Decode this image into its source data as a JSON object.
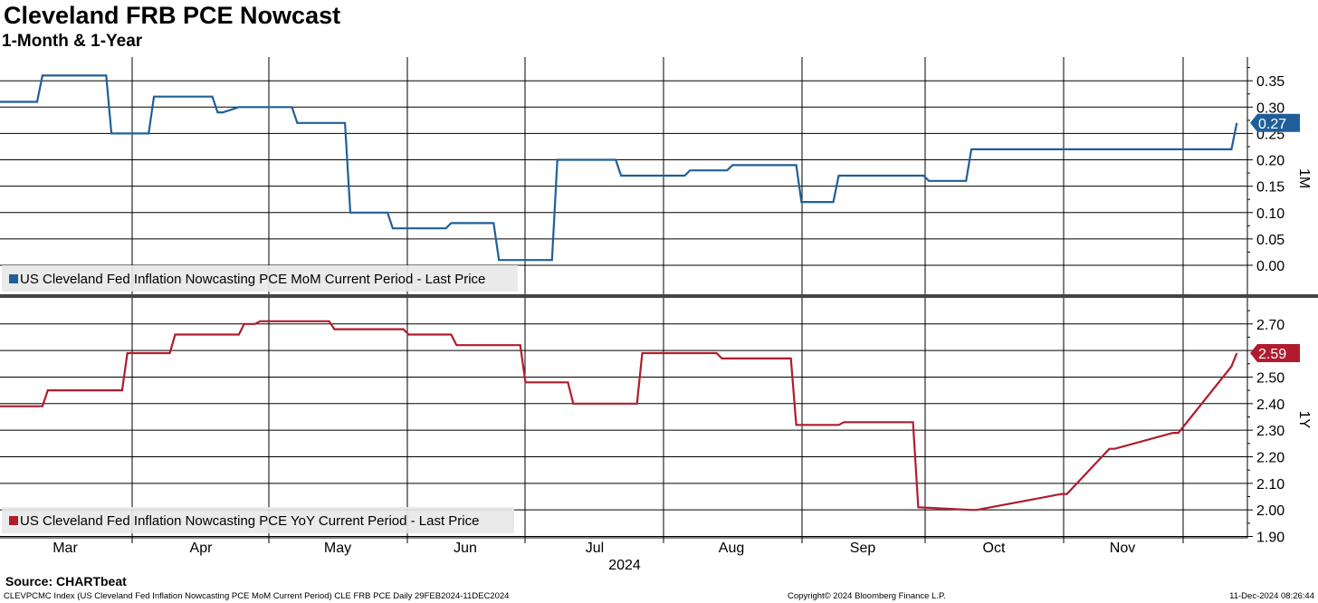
{
  "header": {
    "title": "Cleveland FRB PCE Nowcast",
    "subtitle": "1-Month & 1-Year"
  },
  "footer": {
    "source": "Source: CHARTbeat",
    "index_info": "CLEVPCMC Index (US Cleveland Fed Inflation Nowcasting PCE MoM Current Period) CLE FRB PCE  Daily 29FEB2024-11DEC2024",
    "copyright": "Copyright© 2024 Bloomberg Finance L.P.",
    "timestamp": "11-Dec-2024 08:26:44"
  },
  "colors": {
    "mom": "#1f5f99",
    "yoy": "#b01c2e"
  },
  "chart_data": [
    {
      "type": "line",
      "panel_label": "1M",
      "legend": "US Cleveland Fed Inflation Nowcasting PCE MoM Current Period - Last Price",
      "last_value_label": "0.27",
      "ylim": [
        -0.055,
        0.395
      ],
      "yticks": [
        0.0,
        0.05,
        0.1,
        0.15,
        0.2,
        0.25,
        0.3,
        0.35
      ],
      "ytick_labels": [
        "0.00",
        "0.05",
        "0.10",
        "0.15",
        "0.20",
        "0.25",
        "0.30",
        "0.35"
      ],
      "x": [
        0,
        7,
        8,
        20,
        21,
        28,
        29,
        40,
        41,
        42,
        45,
        46,
        55,
        56,
        65,
        66,
        73,
        74,
        84,
        85,
        93,
        94,
        104,
        105,
        116,
        117,
        129,
        130,
        137,
        138,
        150,
        151,
        157,
        158,
        174,
        175,
        182,
        183,
        193,
        194,
        200,
        201,
        212,
        213,
        219,
        220,
        232,
        233
      ],
      "values": [
        0.31,
        0.31,
        0.36,
        0.36,
        0.25,
        0.25,
        0.32,
        0.32,
        0.29,
        0.29,
        0.3,
        0.3,
        0.3,
        0.27,
        0.27,
        0.1,
        0.1,
        0.07,
        0.07,
        0.08,
        0.08,
        0.01,
        0.01,
        0.2,
        0.2,
        0.17,
        0.17,
        0.18,
        0.18,
        0.19,
        0.19,
        0.12,
        0.12,
        0.17,
        0.17,
        0.16,
        0.16,
        0.22,
        0.22,
        0.22,
        0.22,
        0.22,
        0.22,
        0.22,
        0.22,
        0.22,
        0.22,
        0.27
      ],
      "x_max": 235
    },
    {
      "type": "line",
      "panel_label": "1Y",
      "legend": "US Cleveland Fed Inflation Nowcasting PCE YoY Current Period - Last Price",
      "last_value_label": "2.59",
      "ylim": [
        1.895,
        2.798
      ],
      "yticks": [
        1.9,
        2.0,
        2.1,
        2.2,
        2.3,
        2.4,
        2.5,
        2.6,
        2.7
      ],
      "ytick_labels": [
        "1.90",
        "2.00",
        "2.10",
        "2.20",
        "2.30",
        "2.40",
        "2.50",
        "2.60",
        "2.70"
      ],
      "x": [
        0,
        8,
        9,
        23,
        24,
        32,
        33,
        45,
        46,
        48,
        49,
        62,
        63,
        76,
        77,
        85,
        86,
        98,
        99,
        107,
        108,
        120,
        121,
        135,
        136,
        149,
        150,
        158,
        159,
        172,
        173,
        183,
        184,
        200,
        201,
        209,
        210,
        221,
        222,
        232,
        233
      ],
      "values": [
        2.39,
        2.39,
        2.45,
        2.45,
        2.59,
        2.59,
        2.66,
        2.66,
        2.7,
        2.7,
        2.71,
        2.71,
        2.68,
        2.68,
        2.66,
        2.66,
        2.62,
        2.62,
        2.48,
        2.48,
        2.4,
        2.4,
        2.59,
        2.59,
        2.57,
        2.57,
        2.32,
        2.32,
        2.33,
        2.33,
        2.01,
        2.0,
        2.0,
        2.06,
        2.06,
        2.23,
        2.23,
        2.29,
        2.29,
        2.54,
        2.59
      ],
      "x_max": 235
    }
  ],
  "x_axis": {
    "month_labels": [
      "Mar",
      "Apr",
      "May",
      "Jun",
      "Jul",
      "Aug",
      "Sep",
      "Oct",
      "Nov"
    ],
    "year_label": "2024"
  }
}
